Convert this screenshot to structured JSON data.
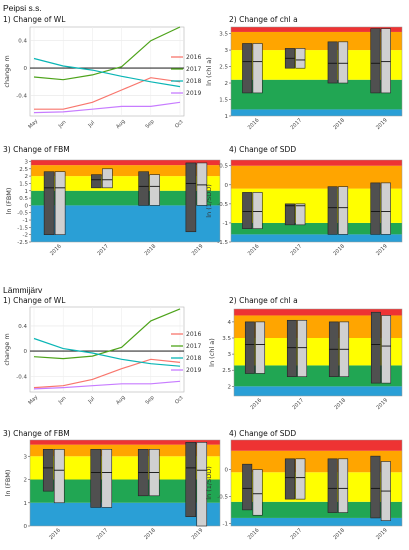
{
  "section_titles": [
    "Peipsi s.s.",
    "Lämmijärv"
  ],
  "chart_data": [
    {
      "type": "line",
      "group": 0,
      "title": "1) Change of WL",
      "xlabel": "",
      "ylabel": "change m",
      "x": [
        "May",
        "Jun",
        "Jul",
        "Aug",
        "Sep",
        "Oct"
      ],
      "ylim": [
        -0.7,
        0.6
      ],
      "yticks": [
        -0.4,
        0.0,
        0.4
      ],
      "reference_line": 0,
      "series": [
        {
          "name": "2016",
          "color": "#f8766d",
          "values": [
            -0.6,
            -0.6,
            -0.5,
            -0.32,
            -0.14,
            -0.2
          ]
        },
        {
          "name": "2017",
          "color": "#4da31a",
          "values": [
            -0.13,
            -0.17,
            -0.1,
            0.02,
            0.4,
            0.6
          ]
        },
        {
          "name": "2018",
          "color": "#0ab5b5",
          "values": [
            0.14,
            0.03,
            -0.03,
            -0.12,
            -0.2,
            -0.27
          ]
        },
        {
          "name": "2019",
          "color": "#c77cff",
          "values": [
            -0.65,
            -0.64,
            -0.6,
            -0.56,
            -0.56,
            -0.5
          ]
        }
      ],
      "legend_position": "right"
    },
    {
      "type": "box",
      "group": 0,
      "title": "2) Change of chl a",
      "xlabel": "",
      "ylabel": "ln (chl a)",
      "categories": [
        "2016",
        "2017",
        "2018",
        "2019"
      ],
      "ylim": [
        1.0,
        3.7
      ],
      "yticks": [
        1.0,
        1.5,
        2.0,
        2.5,
        3.0,
        3.5
      ],
      "bands": [
        {
          "from": 1.0,
          "to": 1.2,
          "color": "#2a9fd6"
        },
        {
          "from": 1.2,
          "to": 2.1,
          "color": "#21a653"
        },
        {
          "from": 2.1,
          "to": 3.0,
          "color": "#ffff00"
        },
        {
          "from": 3.0,
          "to": 3.55,
          "color": "#ffa500"
        },
        {
          "from": 3.55,
          "to": 3.7,
          "color": "#ee3333"
        }
      ],
      "series": [
        {
          "name": "dark",
          "color": "#505050",
          "values": [
            {
              "low": 1.7,
              "median": 2.65,
              "high": 3.2
            },
            {
              "low": 2.45,
              "median": 2.75,
              "high": 3.05
            },
            {
              "low": 2.0,
              "median": 2.6,
              "high": 3.25
            },
            {
              "low": 1.7,
              "median": 2.6,
              "high": 3.65
            }
          ]
        },
        {
          "name": "light",
          "color": "#d0d0d0",
          "values": [
            {
              "low": 1.7,
              "median": 2.65,
              "high": 3.2
            },
            {
              "low": 2.45,
              "median": 2.7,
              "high": 3.05
            },
            {
              "low": 2.0,
              "median": 2.6,
              "high": 3.25
            },
            {
              "low": 1.7,
              "median": 2.65,
              "high": 3.65
            }
          ]
        }
      ]
    },
    {
      "type": "box",
      "group": 0,
      "title": "3) Change of FBM",
      "xlabel": "",
      "ylabel": "ln (FBM)",
      "categories": [
        "2016",
        "2017",
        "2018",
        "2019"
      ],
      "ylim": [
        -2.5,
        3.1
      ],
      "yticks": [
        -2.5,
        -2.0,
        -1.5,
        -1.0,
        -0.5,
        0.0,
        0.5,
        1.0,
        1.5,
        2.0,
        2.5,
        3.0
      ],
      "bands": [
        {
          "from": -2.5,
          "to": 0.0,
          "color": "#2a9fd6"
        },
        {
          "from": 0.0,
          "to": 1.0,
          "color": "#21a653"
        },
        {
          "from": 1.0,
          "to": 2.0,
          "color": "#ffff00"
        },
        {
          "from": 2.0,
          "to": 2.75,
          "color": "#ffa500"
        },
        {
          "from": 2.75,
          "to": 3.1,
          "color": "#ee3333"
        }
      ],
      "series": [
        {
          "name": "dark",
          "color": "#505050",
          "values": [
            {
              "low": -2.0,
              "median": 1.2,
              "high": 2.3
            },
            {
              "low": 1.2,
              "median": 1.75,
              "high": 2.1
            },
            {
              "low": 0.0,
              "median": 1.3,
              "high": 2.3
            },
            {
              "low": -1.8,
              "median": 1.5,
              "high": 2.9
            }
          ]
        },
        {
          "name": "light",
          "color": "#d0d0d0",
          "values": [
            {
              "low": -2.0,
              "median": 1.2,
              "high": 2.3
            },
            {
              "low": 1.2,
              "median": 1.75,
              "high": 2.5
            },
            {
              "low": 0.0,
              "median": 1.3,
              "high": 2.1
            },
            {
              "low": 0.0,
              "median": 1.4,
              "high": 2.9
            }
          ]
        }
      ]
    },
    {
      "type": "box",
      "group": 0,
      "title": "4) Change of SDD",
      "xlabel": "",
      "ylabel": "ln (1/SDD)",
      "categories": [
        "2016",
        "2017",
        "2018",
        "2019"
      ],
      "ylim": [
        -1.5,
        0.65
      ],
      "yticks": [
        -1.5,
        -1.0,
        -0.5,
        0.0,
        0.5
      ],
      "bands": [
        {
          "from": -1.5,
          "to": -1.3,
          "color": "#2a9fd6"
        },
        {
          "from": -1.3,
          "to": -1.0,
          "color": "#21a653"
        },
        {
          "from": -1.0,
          "to": -0.1,
          "color": "#ffff00"
        },
        {
          "from": -0.1,
          "to": 0.5,
          "color": "#ffa500"
        },
        {
          "from": 0.5,
          "to": 0.65,
          "color": "#ee3333"
        }
      ],
      "series": [
        {
          "name": "dark",
          "color": "#505050",
          "values": [
            {
              "low": -1.15,
              "median": -0.7,
              "high": -0.2
            },
            {
              "low": -1.05,
              "median": -0.55,
              "high": -0.5
            },
            {
              "low": -1.3,
              "median": -0.6,
              "high": -0.05
            },
            {
              "low": -1.3,
              "median": -0.7,
              "high": 0.05
            }
          ]
        },
        {
          "name": "light",
          "color": "#d0d0d0",
          "values": [
            {
              "low": -1.15,
              "median": -0.7,
              "high": -0.2
            },
            {
              "low": -1.05,
              "median": -0.55,
              "high": -0.5
            },
            {
              "low": -1.3,
              "median": -0.6,
              "high": -0.05
            },
            {
              "low": -1.3,
              "median": -0.7,
              "high": 0.05
            }
          ]
        }
      ]
    },
    {
      "type": "line",
      "group": 1,
      "title": "1) Change of WL",
      "xlabel": "",
      "ylabel": "change m",
      "x": [
        "May",
        "Jun",
        "Jul",
        "Aug",
        "Sep",
        "Oct"
      ],
      "ylim": [
        -0.65,
        0.7
      ],
      "yticks": [
        -0.4,
        0.0,
        0.4
      ],
      "reference_line": 0,
      "series": [
        {
          "name": "2016",
          "color": "#f8766d",
          "values": [
            -0.58,
            -0.55,
            -0.45,
            -0.28,
            -0.13,
            -0.18
          ]
        },
        {
          "name": "2017",
          "color": "#4da31a",
          "values": [
            -0.09,
            -0.12,
            -0.08,
            0.06,
            0.48,
            0.67
          ]
        },
        {
          "name": "2018",
          "color": "#0ab5b5",
          "values": [
            0.2,
            0.04,
            -0.03,
            -0.13,
            -0.2,
            -0.24
          ]
        },
        {
          "name": "2019",
          "color": "#c77cff",
          "values": [
            -0.6,
            -0.58,
            -0.55,
            -0.52,
            -0.52,
            -0.48
          ]
        }
      ],
      "legend_position": "right"
    },
    {
      "type": "box",
      "group": 1,
      "title": "2) Change of chl a",
      "xlabel": "",
      "ylabel": "ln (chl a)",
      "categories": [
        "2016",
        "2017",
        "2018",
        "2019"
      ],
      "ylim": [
        1.7,
        4.4
      ],
      "yticks": [
        2.0,
        2.5,
        3.0,
        3.5,
        4.0
      ],
      "bands": [
        {
          "from": 1.7,
          "to": 2.0,
          "color": "#2a9fd6"
        },
        {
          "from": 2.0,
          "to": 2.65,
          "color": "#21a653"
        },
        {
          "from": 2.65,
          "to": 3.5,
          "color": "#ffff00"
        },
        {
          "from": 3.5,
          "to": 4.2,
          "color": "#ffa500"
        },
        {
          "from": 4.2,
          "to": 4.4,
          "color": "#ee3333"
        }
      ],
      "series": [
        {
          "name": "dark",
          "color": "#505050",
          "values": [
            {
              "low": 2.4,
              "median": 3.3,
              "high": 4.0
            },
            {
              "low": 2.3,
              "median": 3.2,
              "high": 4.05
            },
            {
              "low": 2.3,
              "median": 3.15,
              "high": 4.0
            },
            {
              "low": 2.1,
              "median": 3.3,
              "high": 4.3
            }
          ]
        },
        {
          "name": "light",
          "color": "#d0d0d0",
          "values": [
            {
              "low": 2.4,
              "median": 3.3,
              "high": 4.0
            },
            {
              "low": 2.3,
              "median": 3.2,
              "high": 4.05
            },
            {
              "low": 2.3,
              "median": 3.15,
              "high": 4.0
            },
            {
              "low": 2.1,
              "median": 3.25,
              "high": 4.2
            }
          ]
        }
      ]
    },
    {
      "type": "box",
      "group": 1,
      "title": "3) Change of FBM",
      "xlabel": "",
      "ylabel": "ln (FBM)",
      "categories": [
        "2016",
        "2017",
        "2018",
        "2019"
      ],
      "ylim": [
        0,
        3.7
      ],
      "yticks": [
        0,
        1,
        2,
        3
      ],
      "bands": [
        {
          "from": 0,
          "to": 1.0,
          "color": "#2a9fd6"
        },
        {
          "from": 1.0,
          "to": 2.0,
          "color": "#21a653"
        },
        {
          "from": 2.0,
          "to": 3.0,
          "color": "#ffff00"
        },
        {
          "from": 3.0,
          "to": 3.5,
          "color": "#ffa500"
        },
        {
          "from": 3.5,
          "to": 3.7,
          "color": "#ee3333"
        }
      ],
      "series": [
        {
          "name": "dark",
          "color": "#505050",
          "values": [
            {
              "low": 1.5,
              "median": 2.5,
              "high": 3.3
            },
            {
              "low": 0.8,
              "median": 2.3,
              "high": 3.3
            },
            {
              "low": 1.3,
              "median": 2.3,
              "high": 3.3
            },
            {
              "low": 0.4,
              "median": 2.5,
              "high": 3.6
            }
          ]
        },
        {
          "name": "light",
          "color": "#d0d0d0",
          "values": [
            {
              "low": 1.0,
              "median": 2.4,
              "high": 3.3
            },
            {
              "low": 0.8,
              "median": 2.3,
              "high": 3.3
            },
            {
              "low": 1.3,
              "median": 2.3,
              "high": 3.3
            },
            {
              "low": 0.0,
              "median": 2.4,
              "high": 3.6
            }
          ]
        }
      ]
    },
    {
      "type": "box",
      "group": 1,
      "title": "4) Change of SDD",
      "xlabel": "",
      "ylabel": "ln (1/SDD)",
      "categories": [
        "2016",
        "2017",
        "2018",
        "2019"
      ],
      "ylim": [
        -1.05,
        0.55
      ],
      "yticks": [
        -1.0,
        -0.5,
        0.0
      ],
      "bands": [
        {
          "from": -1.05,
          "to": -0.9,
          "color": "#2a9fd6"
        },
        {
          "from": -0.9,
          "to": -0.6,
          "color": "#21a653"
        },
        {
          "from": -0.6,
          "to": -0.05,
          "color": "#ffff00"
        },
        {
          "from": -0.05,
          "to": 0.35,
          "color": "#ffa500"
        },
        {
          "from": 0.35,
          "to": 0.55,
          "color": "#ee3333"
        }
      ],
      "series": [
        {
          "name": "dark",
          "color": "#505050",
          "values": [
            {
              "low": -0.75,
              "median": -0.35,
              "high": 0.1
            },
            {
              "low": -0.55,
              "median": -0.15,
              "high": 0.2
            },
            {
              "low": -0.8,
              "median": -0.35,
              "high": 0.2
            },
            {
              "low": -0.9,
              "median": -0.35,
              "high": 0.25
            }
          ]
        },
        {
          "name": "light",
          "color": "#d0d0d0",
          "values": [
            {
              "low": -0.85,
              "median": -0.45,
              "high": 0.0
            },
            {
              "low": -0.55,
              "median": -0.15,
              "high": 0.2
            },
            {
              "low": -0.8,
              "median": -0.35,
              "high": 0.2
            },
            {
              "low": -0.95,
              "median": -0.4,
              "high": 0.15
            }
          ]
        }
      ]
    }
  ]
}
